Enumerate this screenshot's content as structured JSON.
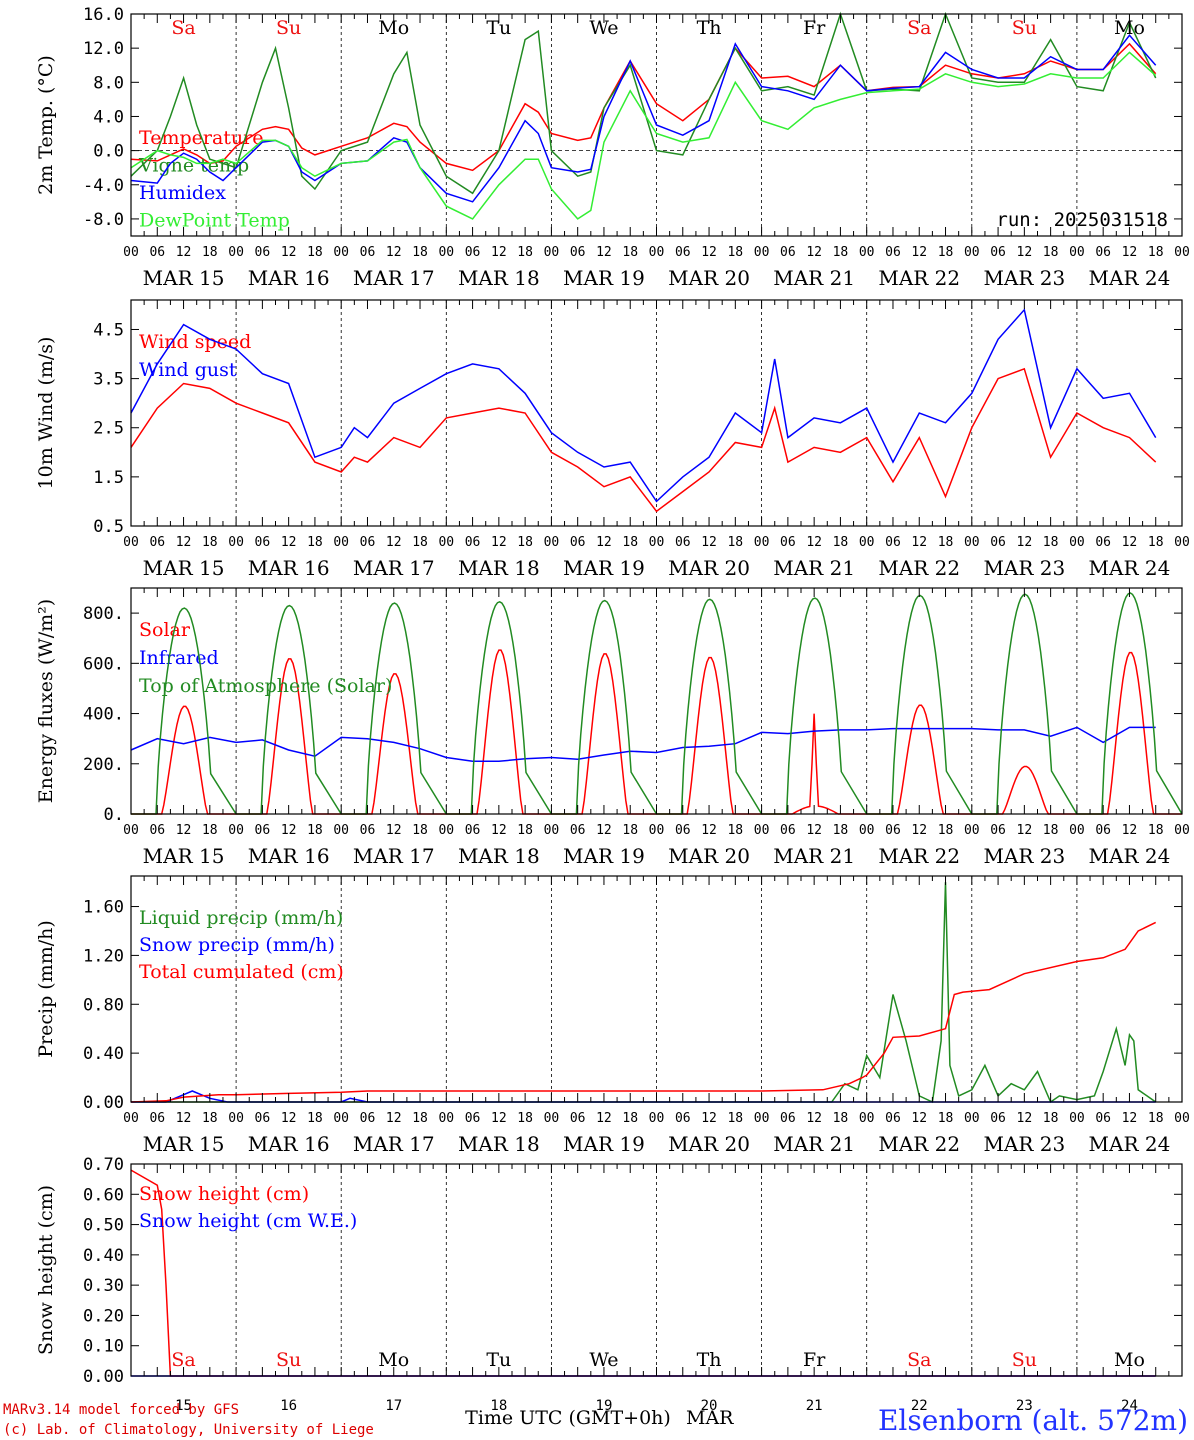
{
  "run_label": "run: 2025031518",
  "footer": {
    "model": "MARv3.14 model forced by GFS",
    "lab": "(c) Lab. of Climatology, University of Liege",
    "xlabel": "Time UTC (GMT+0h)",
    "month": "MAR",
    "station": "Elsenborn (alt. 572m)"
  },
  "days": [
    {
      "abbr": "Sa",
      "weekend": true,
      "date": "MAR 15",
      "num": "15"
    },
    {
      "abbr": "Su",
      "weekend": true,
      "date": "MAR 16",
      "num": "16"
    },
    {
      "abbr": "Mo",
      "weekend": false,
      "date": "MAR 17",
      "num": "17"
    },
    {
      "abbr": "Tu",
      "weekend": false,
      "date": "MAR 18",
      "num": "18"
    },
    {
      "abbr": "We",
      "weekend": false,
      "date": "MAR 19",
      "num": "19"
    },
    {
      "abbr": "Th",
      "weekend": false,
      "date": "MAR 20",
      "num": "20"
    },
    {
      "abbr": "Fr",
      "weekend": false,
      "date": "MAR 21",
      "num": "21"
    },
    {
      "abbr": "Sa",
      "weekend": true,
      "date": "MAR 22",
      "num": "22"
    },
    {
      "abbr": "Su",
      "weekend": true,
      "date": "MAR 23",
      "num": "23"
    },
    {
      "abbr": "Mo",
      "weekend": false,
      "date": "MAR 24",
      "num": "24"
    }
  ],
  "hour_ticks": [
    "00",
    "06",
    "12",
    "18"
  ],
  "colors": {
    "weekend": "#ee1111",
    "weekday": "#000000",
    "footer_red": "#dd0000",
    "station": "#2233ff"
  },
  "chart_data": [
    {
      "id": "temp",
      "type": "line",
      "ylabel": "2m Temp. (°C)",
      "ylim": [
        -10,
        16
      ],
      "yticks": [
        "-8.0",
        "-4.0",
        "0.0",
        "4.0",
        "8.0",
        "12.0",
        "16.0"
      ],
      "ytick_values": [
        -8,
        -4,
        0,
        4,
        8,
        12,
        16
      ],
      "zero_line": true,
      "x_unit": "hours since MAR 15 00 UTC",
      "series": [
        {
          "name": "Temperature",
          "color": "#ff0000",
          "x": [
            0,
            6,
            9,
            12,
            15,
            18,
            21,
            24,
            30,
            33,
            36,
            39,
            42,
            48,
            54,
            60,
            63,
            66,
            72,
            78,
            84,
            90,
            93,
            96,
            102,
            105,
            108,
            114,
            120,
            126,
            132,
            138,
            144,
            150,
            156,
            162,
            168,
            174,
            180,
            186,
            192,
            198,
            204,
            210,
            216,
            222,
            228,
            234
          ],
          "y": [
            -1,
            -1.2,
            -0.5,
            0.2,
            -0.5,
            -1.5,
            -1.2,
            0.5,
            2.5,
            2.8,
            2.5,
            0.3,
            -0.5,
            0.5,
            1.5,
            3.2,
            2.8,
            1,
            -1.5,
            -2.3,
            0,
            5.5,
            4.5,
            2,
            1.2,
            1.5,
            5,
            10.5,
            5.5,
            3.5,
            6,
            12,
            8.5,
            8.7,
            7.5,
            10,
            7,
            7.4,
            7.5,
            10,
            9,
            8.5,
            9,
            10.5,
            9.5,
            9.5,
            12.5,
            9
          ]
        },
        {
          "name": "Vigne temp",
          "color": "#228b22",
          "x": [
            0,
            6,
            9,
            12,
            15,
            18,
            21,
            24,
            30,
            33,
            36,
            39,
            42,
            48,
            54,
            60,
            63,
            66,
            72,
            78,
            84,
            90,
            93,
            96,
            102,
            105,
            108,
            114,
            120,
            126,
            132,
            138,
            144,
            150,
            156,
            162,
            168,
            174,
            180,
            186,
            192,
            198,
            204,
            210,
            216,
            222,
            228,
            234
          ],
          "y": [
            -3,
            0,
            4,
            8.5,
            3,
            -1,
            -1.5,
            -2,
            8,
            12,
            5,
            -3,
            -4.5,
            0,
            1,
            9,
            11.5,
            3,
            -3,
            -5,
            0,
            13,
            14,
            0,
            -3,
            -2.5,
            5,
            10,
            0,
            -0.5,
            6,
            12,
            7,
            7.5,
            6.5,
            17,
            7,
            7.2,
            7,
            17,
            8.5,
            8,
            8,
            13,
            7.5,
            7,
            15,
            8.5
          ]
        },
        {
          "name": "Humidex",
          "color": "#0000ff",
          "x": [
            0,
            6,
            9,
            12,
            15,
            18,
            21,
            24,
            30,
            33,
            36,
            39,
            42,
            48,
            54,
            60,
            63,
            66,
            72,
            78,
            84,
            90,
            93,
            96,
            102,
            105,
            108,
            114,
            120,
            126,
            132,
            138,
            144,
            150,
            156,
            162,
            168,
            174,
            180,
            186,
            192,
            198,
            204,
            210,
            216,
            222,
            228,
            234
          ],
          "y": [
            -3.5,
            -3.8,
            -1.5,
            -0.3,
            -1,
            -2.5,
            -3.5,
            -2,
            1,
            1.2,
            0.5,
            -2.5,
            -3.5,
            -1.5,
            -1.2,
            1.5,
            1,
            -2,
            -5,
            -6,
            -2,
            3.5,
            2,
            -2,
            -2.5,
            -2.2,
            4,
            10.5,
            3,
            1.8,
            3.5,
            12.5,
            7.5,
            7,
            6,
            10,
            7,
            7.3,
            7.5,
            11.5,
            9.5,
            8.5,
            8.5,
            11,
            9.5,
            9.5,
            13.5,
            10
          ]
        },
        {
          "name": "DewPoint Temp",
          "color": "#33ee33",
          "x": [
            0,
            6,
            9,
            12,
            15,
            18,
            21,
            24,
            30,
            33,
            36,
            39,
            42,
            48,
            54,
            60,
            63,
            66,
            72,
            78,
            84,
            90,
            93,
            96,
            102,
            105,
            108,
            114,
            120,
            126,
            132,
            138,
            144,
            150,
            156,
            162,
            168,
            174,
            180,
            186,
            192,
            198,
            204,
            210,
            216,
            222,
            228,
            234
          ],
          "y": [
            -2,
            0,
            -0.5,
            -0.8,
            -1.5,
            -1.5,
            -1,
            -1.5,
            1.2,
            1.2,
            0.5,
            -2,
            -3,
            -1.5,
            -1.2,
            1,
            1.3,
            -2,
            -6.5,
            -8,
            -4,
            -1,
            -1,
            -4.5,
            -8,
            -7,
            1,
            7,
            2,
            1,
            1.5,
            8,
            3.5,
            2.5,
            5,
            6,
            6.8,
            7,
            7.2,
            9,
            8,
            7.5,
            7.8,
            9,
            8.5,
            8.5,
            11.5,
            8.8
          ]
        }
      ]
    },
    {
      "id": "wind",
      "type": "line",
      "ylabel": "10m Wind (m/s)",
      "ylim": [
        0.5,
        5.1
      ],
      "yticks": [
        "0.5",
        "1.5",
        "2.5",
        "3.5",
        "4.5"
      ],
      "ytick_values": [
        0.5,
        1.5,
        2.5,
        3.5,
        4.5
      ],
      "x_unit": "hours since MAR 15 00 UTC",
      "series": [
        {
          "name": "Wind speed",
          "color": "#ff0000",
          "x": [
            0,
            6,
            12,
            18,
            24,
            30,
            36,
            42,
            48,
            51,
            54,
            60,
            66,
            72,
            78,
            84,
            90,
            96,
            102,
            108,
            114,
            120,
            126,
            132,
            138,
            144,
            147,
            150,
            156,
            162,
            168,
            174,
            180,
            186,
            192,
            198,
            204,
            210,
            216,
            222,
            228,
            234
          ],
          "y": [
            2.1,
            2.9,
            3.4,
            3.3,
            3.0,
            2.8,
            2.6,
            1.8,
            1.6,
            1.9,
            1.8,
            2.3,
            2.1,
            2.7,
            2.8,
            2.9,
            2.8,
            2.0,
            1.7,
            1.3,
            1.5,
            0.8,
            1.2,
            1.6,
            2.2,
            2.1,
            2.9,
            1.8,
            2.1,
            2.0,
            2.3,
            1.4,
            2.3,
            1.1,
            2.5,
            3.5,
            3.7,
            1.9,
            2.8,
            2.5,
            2.3,
            1.8
          ]
        },
        {
          "name": "Wind gust",
          "color": "#0000ff",
          "x": [
            0,
            6,
            12,
            18,
            24,
            30,
            36,
            42,
            48,
            51,
            54,
            60,
            66,
            72,
            78,
            84,
            90,
            96,
            102,
            108,
            114,
            120,
            126,
            132,
            138,
            144,
            147,
            150,
            156,
            162,
            168,
            174,
            180,
            186,
            192,
            198,
            204,
            210,
            216,
            222,
            228,
            234
          ],
          "y": [
            2.8,
            3.8,
            4.6,
            4.3,
            4.1,
            3.6,
            3.4,
            1.9,
            2.1,
            2.5,
            2.3,
            3.0,
            3.3,
            3.6,
            3.8,
            3.7,
            3.2,
            2.4,
            2.0,
            1.7,
            1.8,
            1.0,
            1.5,
            1.9,
            2.8,
            2.4,
            3.9,
            2.3,
            2.7,
            2.6,
            2.9,
            1.8,
            2.8,
            2.6,
            3.2,
            4.3,
            4.9,
            2.5,
            3.7,
            3.1,
            3.2,
            2.3
          ]
        }
      ]
    },
    {
      "id": "flux",
      "type": "line",
      "ylabel": "Energy fluxes (W/m²)",
      "ylim": [
        0,
        900
      ],
      "yticks": [
        "0.",
        "200.",
        "400.",
        "600.",
        "800."
      ],
      "ytick_values": [
        0,
        200,
        400,
        600,
        800
      ],
      "x_unit": "hours since MAR 15 00 UTC",
      "series": [
        {
          "name": "Solar",
          "color": "#ff0000",
          "daily_peak": [
            430,
            620,
            560,
            655,
            640,
            625,
            400,
            435,
            190,
            645
          ]
        },
        {
          "name": "Infrared",
          "color": "#0000ff",
          "x": [
            0,
            6,
            12,
            18,
            24,
            30,
            36,
            42,
            48,
            54,
            60,
            66,
            72,
            78,
            84,
            90,
            96,
            102,
            108,
            114,
            120,
            126,
            132,
            138,
            144,
            150,
            156,
            162,
            168,
            174,
            180,
            186,
            192,
            198,
            204,
            210,
            216,
            222,
            228,
            234
          ],
          "y": [
            255,
            300,
            280,
            305,
            285,
            295,
            255,
            230,
            305,
            300,
            285,
            260,
            225,
            210,
            210,
            220,
            225,
            218,
            235,
            250,
            245,
            265,
            270,
            280,
            325,
            320,
            330,
            335,
            335,
            340,
            340,
            340,
            340,
            335,
            335,
            310,
            345,
            285,
            345,
            345
          ]
        },
        {
          "name": "Top of Atmosphere (Solar)",
          "color": "#228b22",
          "daily_peak": [
            820,
            830,
            840,
            845,
            850,
            855,
            860,
            870,
            875,
            880
          ]
        }
      ]
    },
    {
      "id": "precip",
      "type": "line",
      "ylabel": "Precip (mm/h)",
      "ylim": [
        0,
        1.85
      ],
      "yticks": [
        "0.00",
        "0.40",
        "0.80",
        "1.20",
        "1.60"
      ],
      "ytick_values": [
        0,
        0.4,
        0.8,
        1.2,
        1.6
      ],
      "x_unit": "hours since MAR 15 00 UTC",
      "series": [
        {
          "name": "Liquid precip (mm/h)",
          "color": "#228b22",
          "x": [
            0,
            160,
            163,
            166,
            168,
            171,
            174,
            177,
            180,
            183,
            185,
            186,
            187,
            189,
            192,
            195,
            198,
            201,
            204,
            207,
            210,
            212,
            216,
            220,
            222,
            225,
            227,
            228,
            229,
            230,
            232,
            234
          ],
          "y": [
            0,
            0,
            0.15,
            0.1,
            0.38,
            0.2,
            0.88,
            0.5,
            0.05,
            0,
            0.5,
            1.8,
            0.3,
            0.05,
            0.1,
            0.3,
            0.05,
            0.15,
            0.1,
            0.25,
            0,
            0.05,
            0.02,
            0.05,
            0.25,
            0.6,
            0.3,
            0.55,
            0.5,
            0.1,
            0.05,
            0
          ]
        },
        {
          "name": "Snow precip (mm/h)",
          "color": "#0000ff",
          "x": [
            0,
            8,
            12,
            14,
            18,
            22,
            48,
            50,
            54,
            234
          ],
          "y": [
            0,
            0,
            0.06,
            0.09,
            0.03,
            0,
            0,
            0.03,
            0,
            0
          ]
        },
        {
          "name": "Total cumulated (cm)",
          "color": "#ff0000",
          "x": [
            0,
            8,
            12,
            20,
            24,
            36,
            48,
            54,
            66,
            78,
            96,
            120,
            144,
            158,
            164,
            167,
            168,
            172,
            174,
            180,
            186,
            188,
            190,
            196,
            204,
            216,
            222,
            227,
            230,
            234
          ],
          "y": [
            0,
            0.01,
            0.04,
            0.06,
            0.06,
            0.07,
            0.08,
            0.09,
            0.09,
            0.09,
            0.09,
            0.09,
            0.09,
            0.1,
            0.15,
            0.2,
            0.22,
            0.4,
            0.53,
            0.54,
            0.6,
            0.88,
            0.9,
            0.92,
            1.05,
            1.15,
            1.18,
            1.25,
            1.4,
            1.47
          ]
        }
      ]
    },
    {
      "id": "snow",
      "type": "line",
      "ylabel": "Snow height (cm)",
      "ylim": [
        0,
        0.7
      ],
      "yticks": [
        "0.00",
        "0.10",
        "0.20",
        "0.30",
        "0.40",
        "0.50",
        "0.60",
        "0.70"
      ],
      "ytick_values": [
        0,
        0.1,
        0.2,
        0.3,
        0.4,
        0.5,
        0.6,
        0.7
      ],
      "x_unit": "hours since MAR 15 00 UTC",
      "series": [
        {
          "name": "Snow height (cm)",
          "color": "#ff0000",
          "x": [
            0,
            6,
            7,
            8,
            9,
            234
          ],
          "y": [
            0.68,
            0.63,
            0.55,
            0.3,
            0,
            0
          ]
        },
        {
          "name": "Snow height (cm W.E.)",
          "color": "#0000ff",
          "x": [
            0,
            234
          ],
          "y": [
            0,
            0
          ]
        }
      ]
    }
  ]
}
